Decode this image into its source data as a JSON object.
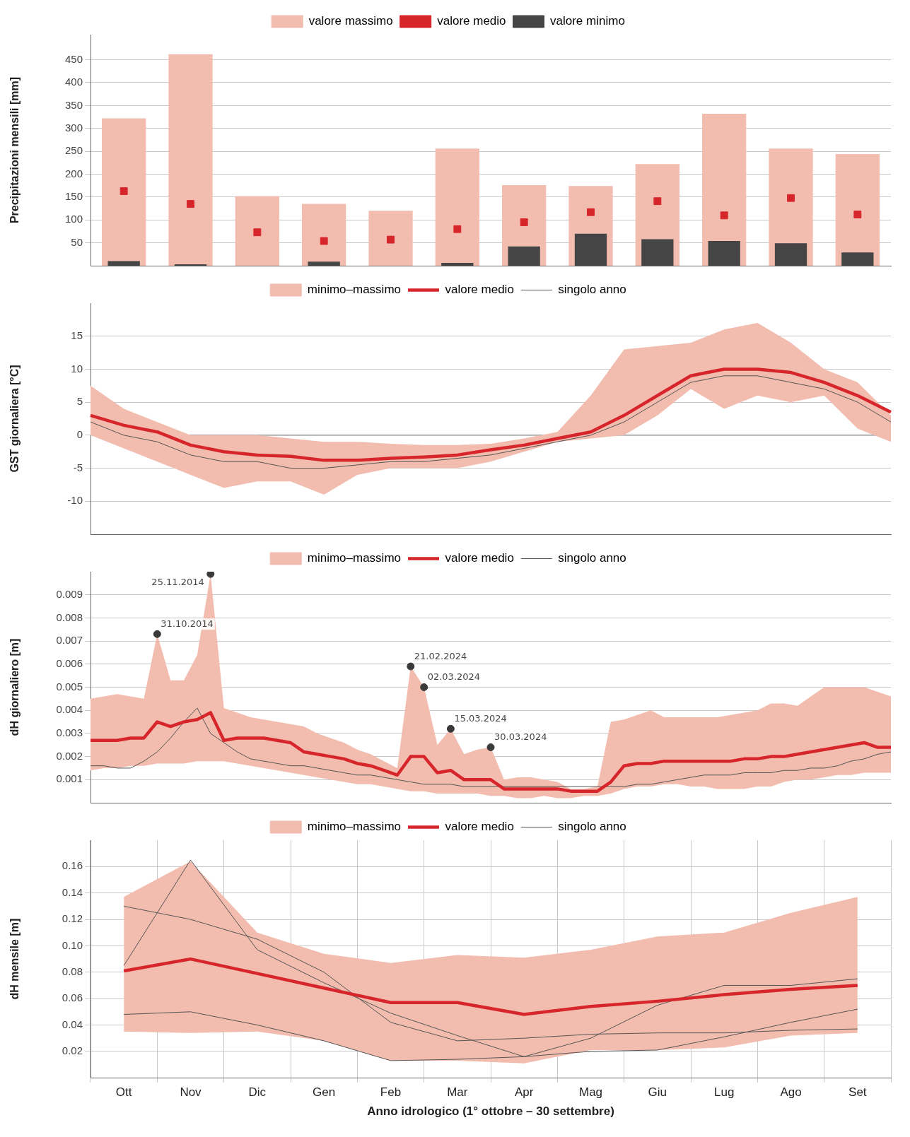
{
  "chart_data": [
    {
      "type": "bar",
      "ylabel": "Precipitazioni mensili [mm]",
      "categories": [
        null,
        null,
        null,
        null,
        null,
        null,
        null,
        null,
        null,
        null,
        null,
        null
      ],
      "series": [
        {
          "name": "valore massimo",
          "color": "#f2bcae",
          "values": [
            322,
            462,
            152,
            135,
            120,
            256,
            176,
            174,
            222,
            332,
            256,
            244
          ]
        },
        {
          "name": "valore medio",
          "type": "scatter",
          "marker": "square",
          "color": "#d7262b",
          "values": [
            163,
            135,
            73,
            54,
            57,
            80,
            95,
            117,
            141,
            110,
            148,
            112
          ]
        },
        {
          "name": "valore minimo",
          "color": "#454545",
          "values": [
            10,
            3,
            null,
            9,
            null,
            6,
            42,
            70,
            58,
            54,
            49,
            29
          ]
        }
      ],
      "ylim": [
        0,
        505
      ],
      "yticks": [
        50,
        100,
        150,
        200,
        250,
        300,
        350,
        400,
        450
      ],
      "grid": "y",
      "legend": "top",
      "tick_labels": "y"
    },
    {
      "type": "line",
      "ylabel": "GST giornaliera [°C]",
      "categories": [
        null,
        null,
        null,
        null,
        null,
        null,
        null,
        null,
        null,
        null,
        null,
        null,
        null,
        null,
        null,
        null,
        null,
        null,
        null,
        null,
        null,
        null,
        null,
        null,
        null
      ],
      "series": [
        {
          "name": "minimo–massimo",
          "type": "area",
          "color": "#f2bcae",
          "values": [
            null,
            null,
            null,
            null,
            null,
            null,
            null,
            null,
            null,
            null,
            null,
            null,
            null,
            null,
            null,
            null,
            null,
            null,
            null,
            null,
            null,
            null,
            null,
            null,
            null
          ]
        },
        {
          "name": "valore medio",
          "color": "#d7262b",
          "values": [
            3,
            1.5,
            0.5,
            -1.5,
            -2.5,
            -3,
            -3.2,
            -3.8,
            -3.8,
            -3.5,
            -3.3,
            -3,
            -2.2,
            -1.5,
            -0.5,
            0.5,
            3,
            6,
            9,
            10,
            10,
            9.5,
            8,
            6,
            3.5
          ],
          "lower": [
            0,
            -2,
            -4,
            -6,
            -8,
            -7,
            -7,
            -9,
            -6,
            -5,
            -5,
            -5,
            -4,
            -2.5,
            -1,
            -0.5,
            0,
            3,
            7,
            4,
            6,
            5,
            6,
            1,
            -1
          ],
          "upper": [
            7.5,
            4,
            2,
            0,
            0,
            0,
            -0.5,
            -1,
            -1,
            -1.3,
            -1.5,
            -1.5,
            -1.3,
            -0.5,
            0.5,
            6,
            13,
            13.5,
            14,
            16,
            17,
            14,
            10,
            8,
            3
          ]
        },
        {
          "name": "singolo anno",
          "color": "#555555",
          "values": [
            2,
            0,
            -1,
            -3,
            -4,
            -4,
            -5,
            -5,
            -4.5,
            -4,
            -4,
            -3.5,
            -3,
            -2,
            -1,
            0,
            2,
            5,
            8,
            9,
            9,
            8,
            7,
            5,
            2
          ]
        }
      ],
      "ylim": [
        -15,
        20
      ],
      "yticks": [
        -10,
        -5,
        0,
        5,
        10,
        15
      ],
      "grid": "y",
      "legend": "top",
      "tick_labels": "y",
      "ref_lines": [
        {
          "axis": "y",
          "value": 0,
          "color": "#888888"
        }
      ]
    },
    {
      "type": "line",
      "ylabel": "dH giornaliero [m]",
      "categories": [
        null,
        null,
        null,
        null,
        null,
        null,
        null,
        null,
        null,
        null,
        null,
        null,
        null,
        null,
        null,
        null,
        null,
        null,
        null,
        null,
        null,
        null,
        null,
        null,
        null,
        null,
        null,
        null,
        null,
        null,
        null,
        null,
        null,
        null,
        null,
        null,
        null,
        null,
        null,
        null,
        null,
        null,
        null,
        null,
        null,
        null,
        null,
        null,
        null,
        null,
        null,
        null,
        null,
        null,
        null,
        null,
        null,
        null,
        null,
        null,
        null
      ],
      "series": [
        {
          "name": "minimo–massimo",
          "type": "area",
          "color": "#f2bcae",
          "values": [
            null,
            null,
            null,
            null,
            null,
            null,
            null,
            null,
            null,
            null,
            null,
            null,
            null,
            null,
            null,
            null,
            null,
            null,
            null,
            null,
            null,
            null,
            null,
            null,
            null,
            null,
            null,
            null,
            null,
            null,
            null,
            null,
            null,
            null,
            null,
            null,
            null,
            null,
            null,
            null,
            null,
            null,
            null,
            null,
            null,
            null,
            null,
            null,
            null,
            null,
            null,
            null,
            null,
            null,
            null,
            null,
            null,
            null,
            null,
            null,
            null
          ]
        },
        {
          "name": "valore medio",
          "color": "#d7262b",
          "values": [
            0.0027,
            0.0027,
            0.0027,
            0.0028,
            0.0028,
            0.0035,
            0.0033,
            0.0035,
            0.0036,
            0.0039,
            0.0027,
            0.0028,
            0.0028,
            0.0028,
            0.0027,
            0.0026,
            0.0022,
            0.0021,
            0.002,
            0.0019,
            0.0017,
            0.0016,
            0.0014,
            0.0012,
            0.002,
            0.002,
            0.0013,
            0.0014,
            0.001,
            0.001,
            0.001,
            0.0006,
            0.0006,
            0.0006,
            0.0006,
            0.0006,
            0.0005,
            0.0005,
            0.0005,
            0.0009,
            0.0016,
            0.0017,
            0.0017,
            0.0018,
            0.0018,
            0.0018,
            0.0018,
            0.0018,
            0.0018,
            0.0019,
            0.0019,
            0.002,
            0.002,
            0.0021,
            0.0022,
            0.0023,
            0.0024,
            0.0025,
            0.0026,
            0.0024,
            0.0024
          ],
          "upper": [
            0.0045,
            0.0046,
            0.0047,
            0.0046,
            0.0045,
            0.0073,
            0.0053,
            0.0053,
            0.0064,
            0.0099,
            0.0041,
            0.0039,
            0.0037,
            0.0036,
            0.0035,
            0.0034,
            0.0033,
            0.003,
            0.0028,
            0.0026,
            0.0023,
            0.0021,
            0.0018,
            0.0015,
            0.0059,
            0.005,
            0.0025,
            0.0032,
            0.0021,
            0.0023,
            0.0024,
            0.001,
            0.0011,
            0.0011,
            0.001,
            0.0009,
            0.0006,
            0.0006,
            0.0007,
            0.0035,
            0.0036,
            0.0038,
            0.004,
            0.0037,
            0.0037,
            0.0037,
            0.0037,
            0.0037,
            0.0038,
            0.0039,
            0.004,
            0.0043,
            0.0043,
            0.0042,
            0.0046,
            0.005,
            0.005,
            0.005,
            0.005,
            0.0048,
            0.0046
          ],
          "lower": [
            0.0014,
            0.0015,
            0.0015,
            0.0016,
            0.0016,
            0.0017,
            0.0017,
            0.0017,
            0.0018,
            0.0018,
            0.0018,
            0.0017,
            0.0016,
            0.0015,
            0.0014,
            0.0013,
            0.0012,
            0.0011,
            0.001,
            0.0009,
            0.0008,
            0.0008,
            0.0007,
            0.0006,
            0.0005,
            0.0005,
            0.0004,
            0.0004,
            0.0004,
            0.0004,
            0.0003,
            0.0003,
            0.0002,
            0.0002,
            0.0003,
            0.0002,
            0.0002,
            0.0003,
            0.0003,
            0.0004,
            0.0006,
            0.0007,
            0.0007,
            0.0008,
            0.0008,
            0.0007,
            0.0007,
            0.0006,
            0.0006,
            0.0006,
            0.0007,
            0.0007,
            0.0009,
            0.001,
            0.001,
            0.0011,
            0.0012,
            0.0012,
            0.0013,
            0.0013,
            0.0013
          ]
        },
        {
          "name": "singolo anno",
          "color": "#555555",
          "values": [
            0.0016,
            0.0016,
            0.0015,
            0.0015,
            0.0018,
            0.0022,
            0.0028,
            0.0035,
            0.0041,
            0.003,
            0.0026,
            0.0022,
            0.0019,
            0.0018,
            0.0017,
            0.0016,
            0.0016,
            0.0015,
            0.0014,
            0.0013,
            0.0012,
            0.0012,
            0.0011,
            0.001,
            0.0009,
            0.0008,
            0.0008,
            0.0008,
            0.0007,
            0.0007,
            0.0007,
            0.0007,
            0.0007,
            0.0007,
            0.0007,
            0.0007,
            0.0007,
            0.0007,
            0.0007,
            0.0007,
            0.0007,
            0.0008,
            0.0008,
            0.0009,
            0.001,
            0.0011,
            0.0012,
            0.0012,
            0.0012,
            0.0013,
            0.0013,
            0.0013,
            0.0014,
            0.0014,
            0.0015,
            0.0015,
            0.0016,
            0.0018,
            0.0019,
            0.0021,
            0.0022
          ]
        },
        {
          "type": "scatter",
          "marker": "circle",
          "color": "#3a3a3a",
          "values": [
            null,
            null,
            null,
            null,
            null,
            0.0073,
            null,
            null,
            null,
            0.0099,
            null,
            null,
            null,
            null,
            null,
            null,
            null,
            null,
            null,
            null,
            null,
            null,
            null,
            null,
            0.0059,
            0.005,
            null,
            0.0032,
            null,
            null,
            0.0024,
            null,
            null,
            null,
            null,
            null,
            null,
            null,
            null,
            null,
            null,
            null,
            null,
            null,
            null,
            null,
            null,
            null,
            null,
            null,
            null,
            null,
            null,
            null,
            null,
            null,
            null,
            null,
            null,
            null,
            null
          ]
        }
      ],
      "ylim": [
        0,
        0.01
      ],
      "yticks": [
        0.001,
        0.002,
        0.003,
        0.004,
        0.005,
        0.006,
        0.007,
        0.008,
        0.009
      ],
      "grid": "y",
      "legend": "top",
      "tick_labels": "y",
      "annotations": [
        "31.10.2014",
        "25.11.2014",
        "21.02.2024",
        "02.03.2024",
        "15.03.2024",
        "30.03.2024"
      ]
    },
    {
      "type": "line",
      "ylabel": "dH mensile [m]",
      "xlabel": "Anno idrologico (1° ottobre – 30 settembre)",
      "categories": [
        "Ott",
        "Nov",
        "Dic",
        "Gen",
        "Feb",
        "Mar",
        "Apr",
        "Mag",
        "Giu",
        "Lug",
        "Ago",
        "Set"
      ],
      "series": [
        {
          "name": "minimo–massimo",
          "type": "area",
          "color": "#f2bcae",
          "values": [
            null,
            null,
            null,
            null,
            null,
            null,
            null,
            null,
            null,
            null,
            null,
            null
          ]
        },
        {
          "name": "valore medio",
          "color": "#d7262b",
          "values": [
            0.081,
            0.09,
            0.079,
            0.068,
            0.057,
            0.057,
            0.048,
            0.054,
            0.058,
            0.063,
            0.067,
            0.07
          ],
          "upper": [
            0.137,
            0.164,
            0.11,
            0.094,
            0.087,
            0.093,
            0.091,
            0.097,
            0.107,
            0.11,
            0.125,
            0.137
          ],
          "lower": [
            0.035,
            0.034,
            0.035,
            0.028,
            0.013,
            0.013,
            0.011,
            0.021,
            0.021,
            0.023,
            0.032,
            0.034
          ]
        },
        {
          "name": "singolo anno",
          "color": "#555555",
          "values": [
            0.048,
            0.05,
            0.04,
            0.028,
            0.013,
            0.014,
            0.016,
            0.02,
            0.021,
            0.031,
            0.042,
            0.052
          ]
        },
        {
          "color": "#555555",
          "values": [
            0.13,
            0.12,
            0.105,
            0.08,
            0.042,
            0.028,
            0.03,
            0.033,
            0.034,
            0.034,
            0.036,
            0.037
          ]
        },
        {
          "color": "#555555",
          "values": [
            0.085,
            0.165,
            0.097,
            0.072,
            0.049,
            0.032,
            0.016,
            0.03,
            0.055,
            0.07,
            0.07,
            0.075
          ]
        }
      ],
      "ylim": [
        0,
        0.18
      ],
      "yticks": [
        0.02,
        0.04,
        0.06,
        0.08,
        {
          "value": 0.1,
          "label": "0.10"
        },
        0.12,
        0.14,
        0.16
      ],
      "grid": true,
      "legend": "top"
    }
  ]
}
